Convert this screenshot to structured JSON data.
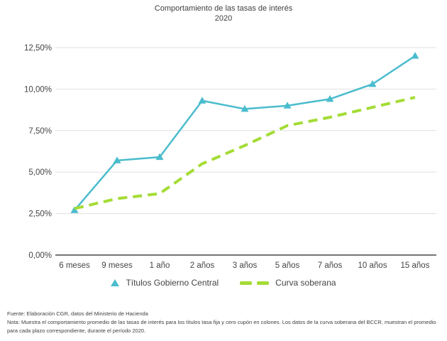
{
  "title": {
    "line1": "Comportamiento de las tasas de interés",
    "line2": "2020"
  },
  "chart_data": {
    "type": "line",
    "categories": [
      "6 meses",
      "9 meses",
      "1 año",
      "2 años",
      "3 años",
      "5 años",
      "7 años",
      "10 años",
      "15 años"
    ],
    "series": [
      {
        "name": "Títulos Gobierno Central",
        "color": "#4abccd",
        "line_style": "solid",
        "marker": "triangle",
        "values": [
          2.7,
          5.7,
          5.9,
          9.3,
          8.8,
          9.0,
          9.4,
          10.3,
          12.0
        ]
      },
      {
        "name": "Curva soberana",
        "color": "#a4dc35",
        "line_style": "dashed",
        "marker": "none",
        "values": [
          2.8,
          3.4,
          3.7,
          5.5,
          6.6,
          7.8,
          8.3,
          8.9,
          9.5
        ]
      }
    ],
    "y_ticks": [
      {
        "value": 12.5,
        "label": "12,50%"
      },
      {
        "value": 10.0,
        "label": "10,00%"
      },
      {
        "value": 7.5,
        "label": "7,50%"
      },
      {
        "value": 5.0,
        "label": "5,00%"
      },
      {
        "value": 2.5,
        "label": "2,50%"
      },
      {
        "value": 0.0,
        "label": "0,00%"
      }
    ],
    "ylim": [
      0,
      12.5
    ],
    "xlabel": "",
    "ylabel": "",
    "grid": true,
    "legend_position": "bottom",
    "gridline_color": "#e0e0e0",
    "axis_line_color": "#757575",
    "tick_text_color": "#444444"
  },
  "footer": {
    "fuente": "Fuente: Elaboración CGR, datos del Ministerio de Hacienda",
    "nota": "Nota: Muestra el comportamiento promedio de las tasas de interés para los títulos tasa fija y cero cupón en colones. Los datos de la curva soberana del BCCR, muestran el promedio para cada plazo correspondiente, durante el período 2020."
  }
}
